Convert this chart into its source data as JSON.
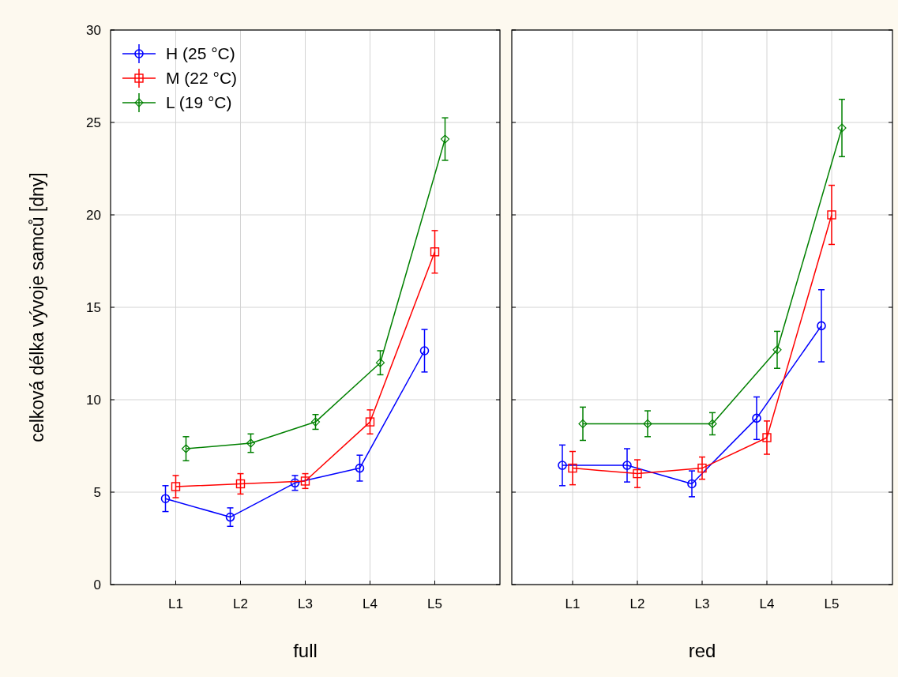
{
  "chart_data": [
    {
      "type": "line",
      "xlabel": "full",
      "ylabel": "celková délka vývoje samců [dny]",
      "categories": [
        "L1",
        "L2",
        "L3",
        "L4",
        "L5"
      ],
      "ylim": [
        0,
        30
      ],
      "yticks": [
        0,
        5,
        10,
        15,
        20,
        25,
        30
      ],
      "grid": true,
      "legend": "top left",
      "series": [
        {
          "name": "H (25 °C)",
          "color": "#0000ff",
          "marker": "circle",
          "values": [
            4.65,
            3.65,
            5.5,
            6.3,
            12.65
          ],
          "errors": [
            0.7,
            0.5,
            0.4,
            0.7,
            1.15
          ]
        },
        {
          "name": "M (22 °C)",
          "color": "#ff0000",
          "marker": "square",
          "values": [
            5.3,
            5.45,
            5.6,
            8.8,
            18.0
          ],
          "errors": [
            0.6,
            0.55,
            0.4,
            0.65,
            1.15
          ]
        },
        {
          "name": "L (19 °C)",
          "color": "#008000",
          "marker": "diamond",
          "values": [
            7.35,
            7.65,
            8.8,
            12.0,
            24.1
          ],
          "errors": [
            0.65,
            0.5,
            0.4,
            0.65,
            1.15
          ]
        }
      ]
    },
    {
      "type": "line",
      "xlabel": "red",
      "categories": [
        "L1",
        "L2",
        "L3",
        "L4",
        "L5"
      ],
      "ylim": [
        0,
        30
      ],
      "yticks": [
        0,
        5,
        10,
        15,
        20,
        25,
        30
      ],
      "grid": true,
      "tick_labels": "x",
      "series": [
        {
          "color": "#0000ff",
          "marker": "circle",
          "values": [
            6.45,
            6.45,
            5.45,
            9.0,
            14.0
          ],
          "errors": [
            1.1,
            0.9,
            0.7,
            1.15,
            1.95
          ]
        },
        {
          "color": "#ff0000",
          "marker": "square",
          "values": [
            6.3,
            6.0,
            6.3,
            7.95,
            20.0
          ],
          "errors": [
            0.9,
            0.75,
            0.6,
            0.9,
            1.6
          ]
        },
        {
          "color": "#008000",
          "marker": "diamond",
          "values": [
            8.7,
            8.7,
            8.7,
            12.7,
            24.7
          ],
          "errors": [
            0.9,
            0.7,
            0.6,
            1.0,
            1.55
          ]
        }
      ]
    }
  ]
}
